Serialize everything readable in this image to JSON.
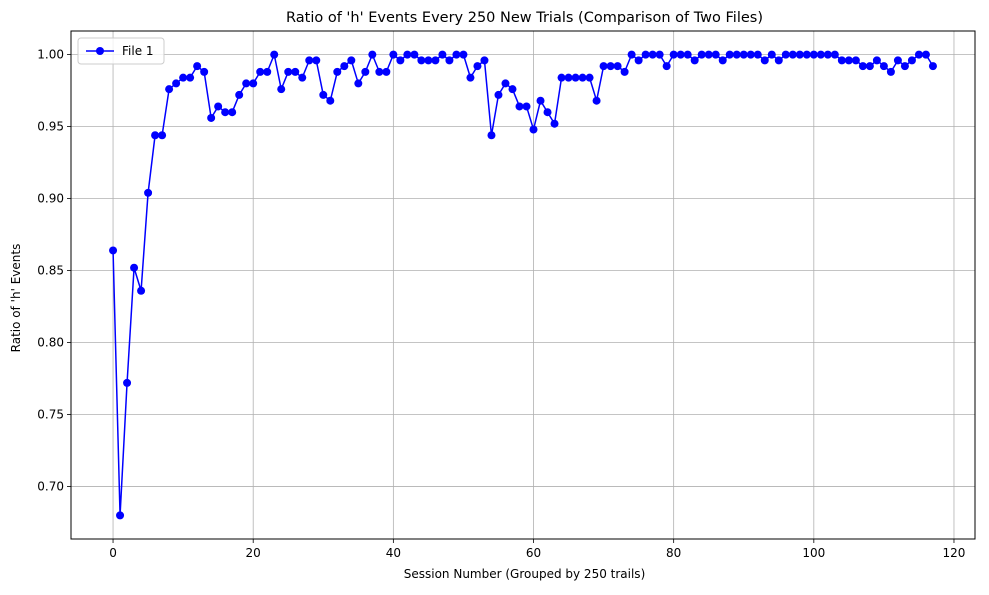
{
  "chart_data": {
    "type": "line",
    "title": "Ratio of 'h' Events Every 250 New Trials (Comparison of Two Files)",
    "xlabel": "Session Number (Grouped by 250 trails)",
    "ylabel": "Ratio of 'h' Events",
    "xlim": [
      -6,
      123
    ],
    "ylim": [
      0.6636,
      1.0164
    ],
    "x_ticks": [
      0,
      20,
      40,
      60,
      80,
      100,
      120
    ],
    "x_tick_labels": [
      "0",
      "20",
      "40",
      "60",
      "80",
      "100",
      "120"
    ],
    "y_ticks": [
      0.7,
      0.75,
      0.8,
      0.85,
      0.9,
      0.95,
      1.0
    ],
    "y_tick_labels": [
      "0.70",
      "0.75",
      "0.80",
      "0.85",
      "0.90",
      "0.95",
      "1.00"
    ],
    "grid": true,
    "legend_position": "top-left",
    "series": [
      {
        "name": "File 1",
        "color": "#0000ff",
        "marker": "circle",
        "x": [
          0,
          1,
          2,
          3,
          4,
          5,
          6,
          7,
          8,
          9,
          10,
          11,
          12,
          13,
          14,
          15,
          16,
          17,
          18,
          19,
          20,
          21,
          22,
          23,
          24,
          25,
          26,
          27,
          28,
          29,
          30,
          31,
          32,
          33,
          34,
          35,
          36,
          37,
          38,
          39,
          40,
          41,
          42,
          43,
          44,
          45,
          46,
          47,
          48,
          49,
          50,
          51,
          52,
          53,
          54,
          55,
          56,
          57,
          58,
          59,
          60,
          61,
          62,
          63,
          64,
          65,
          66,
          67,
          68,
          69,
          70,
          71,
          72,
          73,
          74,
          75,
          76,
          77,
          78,
          79,
          80,
          81,
          82,
          83,
          84,
          85,
          86,
          87,
          88,
          89,
          90,
          91,
          92,
          93,
          94,
          95,
          96,
          97,
          98,
          99,
          100,
          101,
          102,
          103,
          104,
          105,
          106,
          107,
          108,
          109,
          110,
          111,
          112,
          113,
          114,
          115,
          116,
          117
        ],
        "y": [
          0.864,
          0.68,
          0.772,
          0.852,
          0.836,
          0.904,
          0.944,
          0.944,
          0.976,
          0.98,
          0.984,
          0.984,
          0.992,
          0.988,
          0.956,
          0.964,
          0.96,
          0.96,
          0.972,
          0.98,
          0.98,
          0.988,
          0.988,
          1.0,
          0.976,
          0.988,
          0.988,
          0.984,
          0.996,
          0.996,
          0.972,
          0.968,
          0.988,
          0.992,
          0.996,
          0.98,
          0.988,
          1.0,
          0.988,
          0.988,
          1.0,
          0.996,
          1.0,
          1.0,
          0.996,
          0.996,
          0.996,
          1.0,
          0.996,
          1.0,
          1.0,
          0.984,
          0.992,
          0.996,
          0.944,
          0.972,
          0.98,
          0.976,
          0.964,
          0.964,
          0.948,
          0.968,
          0.96,
          0.952,
          0.984,
          0.984,
          0.984,
          0.984,
          0.984,
          0.968,
          0.992,
          0.992,
          0.992,
          0.988,
          1.0,
          0.996,
          1.0,
          1.0,
          1.0,
          0.992,
          1.0,
          1.0,
          1.0,
          0.996,
          1.0,
          1.0,
          1.0,
          0.996,
          1.0,
          1.0,
          1.0,
          1.0,
          1.0,
          0.996,
          1.0,
          0.996,
          1.0,
          1.0,
          1.0,
          1.0,
          1.0,
          1.0,
          1.0,
          1.0,
          0.996,
          0.996,
          0.996,
          0.992,
          0.992,
          0.996,
          0.992,
          0.988,
          0.996,
          0.992,
          0.996,
          1.0,
          1.0,
          0.992
        ]
      }
    ]
  }
}
